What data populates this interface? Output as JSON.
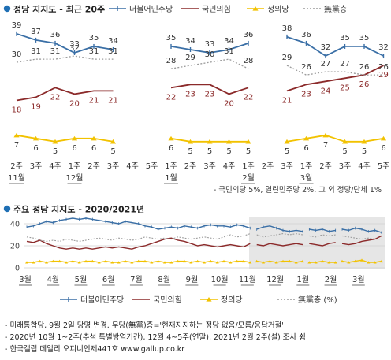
{
  "colors": {
    "dem": "#3a6fa6",
    "ppp": "#8b2a2a",
    "justice": "#f2c200",
    "none": "#9a9a9a",
    "bullet": "#1f6fb4",
    "shade": "#e6e6e6"
  },
  "icons": [
    "bullet-dot-icon",
    "legend-line-marker-icon"
  ],
  "chart_data": [
    {
      "type": "line",
      "title": "정당 지지도 - 최근 20주",
      "legend": [
        "더불어민주당",
        "국민의힘",
        "정의당",
        "無黨층"
      ],
      "legend_position": "top-right",
      "x_labels": [
        "2주",
        "3주",
        "4주",
        "1주",
        "2주",
        "3주",
        "4주",
        "5주",
        "1주",
        "2주",
        "3주",
        "4주",
        "1주",
        "2주",
        "3주",
        "1주",
        "2주",
        "3주",
        "4주",
        "5주"
      ],
      "month_labels": [
        {
          "index": 0,
          "text": "11월"
        },
        {
          "index": 3,
          "text": "12월"
        },
        {
          "index": 8,
          "text": "1월"
        },
        {
          "index": 12,
          "text": "2월"
        },
        {
          "index": 15,
          "text": "3월"
        }
      ],
      "segments": [
        [
          0,
          5
        ],
        [
          8,
          12
        ],
        [
          14,
          19
        ]
      ],
      "series": [
        {
          "name": "더불어민주당",
          "key": "dem",
          "values": [
            39,
            37,
            36,
            33,
            35,
            34,
            null,
            null,
            35,
            34,
            33,
            34,
            36,
            null,
            38,
            36,
            32,
            35,
            35,
            32
          ]
        },
        {
          "name": "국민의힘",
          "key": "ppp",
          "values": [
            18,
            19,
            22,
            20,
            21,
            21,
            null,
            null,
            22,
            23,
            23,
            20,
            22,
            null,
            21,
            23,
            24,
            25,
            26,
            29
          ]
        },
        {
          "name": "정의당",
          "key": "justice",
          "values": [
            7,
            6,
            5,
            6,
            6,
            5,
            null,
            null,
            6,
            5,
            5,
            5,
            5,
            null,
            5,
            6,
            7,
            5,
            5,
            6
          ]
        },
        {
          "name": "無黨층",
          "key": "none",
          "values": [
            30,
            31,
            31,
            32,
            31,
            31,
            null,
            null,
            28,
            29,
            30,
            31,
            28,
            null,
            29,
            26,
            27,
            27,
            26,
            26
          ]
        }
      ],
      "ylim": [
        0,
        45
      ],
      "footnote": "- 국민의당 5%, 열린민주당 2%, 그 외 정당/단체 1%"
    },
    {
      "type": "line",
      "title": "주요 정당 지지도 - 2020/2021년",
      "legend": [
        "더불어민주당",
        "국민의힘",
        "정의당",
        "無黨층 (%)"
      ],
      "legend_position": "bottom",
      "yticks": [
        0,
        20,
        40
      ],
      "ylim": [
        0,
        50
      ],
      "x_labels": [
        "3월",
        "4월",
        "5월",
        "6월",
        "7월",
        "8월",
        "9월",
        "10월",
        "11월",
        "12월",
        "1월",
        "2월",
        "3월"
      ],
      "gaps": [
        [
          9.1,
          10.05
        ],
        [
          12.8,
          13.2
        ],
        [
          15.2,
          15.8
        ]
      ],
      "shaded_from": 10.6,
      "n_points": 55,
      "series": [
        {
          "name": "더불어민주당",
          "key": "dem",
          "approx_values": [
            37,
            38,
            40,
            42,
            41,
            43,
            44,
            45,
            44,
            45,
            44,
            43,
            42,
            41,
            40,
            42,
            41,
            40,
            38,
            37,
            35,
            36,
            37,
            36,
            38,
            37,
            36,
            38,
            39,
            38,
            38,
            37,
            39,
            38,
            36,
            35,
            37,
            38,
            36,
            34,
            33,
            34,
            33,
            35,
            34,
            35,
            33,
            34,
            35,
            34,
            36,
            35,
            33,
            34,
            32
          ]
        },
        {
          "name": "국민의힘",
          "key": "ppp",
          "approx_values": [
            24,
            23,
            25,
            22,
            20,
            18,
            17,
            18,
            17,
            18,
            17,
            18,
            19,
            18,
            19,
            18,
            17,
            19,
            20,
            22,
            24,
            26,
            27,
            25,
            24,
            22,
            20,
            21,
            20,
            19,
            20,
            21,
            20,
            19,
            22,
            21,
            20,
            22,
            21,
            20,
            21,
            22,
            21,
            22,
            21,
            20,
            22,
            23,
            22,
            21,
            22,
            24,
            25,
            26,
            29
          ]
        },
        {
          "name": "정의당",
          "key": "justice",
          "approx_values": [
            5,
            5,
            6,
            5,
            6,
            6,
            5,
            6,
            5,
            6,
            6,
            5,
            6,
            5,
            5,
            6,
            5,
            6,
            6,
            5,
            6,
            5,
            5,
            6,
            6,
            5,
            6,
            5,
            6,
            5,
            6,
            5,
            6,
            6,
            5,
            6,
            5,
            6,
            5,
            6,
            6,
            5,
            6,
            5,
            5,
            6,
            5,
            5,
            6,
            5,
            6,
            7,
            5,
            5,
            6
          ]
        },
        {
          "name": "無黨층 (%)",
          "key": "none",
          "approx_values": [
            28,
            27,
            25,
            24,
            25,
            24,
            26,
            25,
            24,
            25,
            26,
            27,
            26,
            25,
            27,
            26,
            25,
            26,
            28,
            27,
            26,
            27,
            26,
            28,
            27,
            26,
            27,
            28,
            27,
            26,
            28,
            30,
            28,
            29,
            31,
            30,
            28,
            29,
            30,
            31,
            30,
            31,
            30,
            29,
            28,
            30,
            29,
            30,
            29,
            28,
            27,
            26,
            27,
            26,
            26
          ]
        }
      ]
    }
  ],
  "notes": [
    "- 미래통합당, 9월 2일 당명 변경. 무당(無黨)층='현재지지하는 정당 없음/모름/응답거절'",
    "- 2020년 10월 1~2주(추석 특별방역기간), 12월 4~5주(연말), 2021년 2월 2주(설) 조사 쉼",
    "- 한국갤럽 데일리 오피니언제441호 www.gallup.co.kr"
  ]
}
